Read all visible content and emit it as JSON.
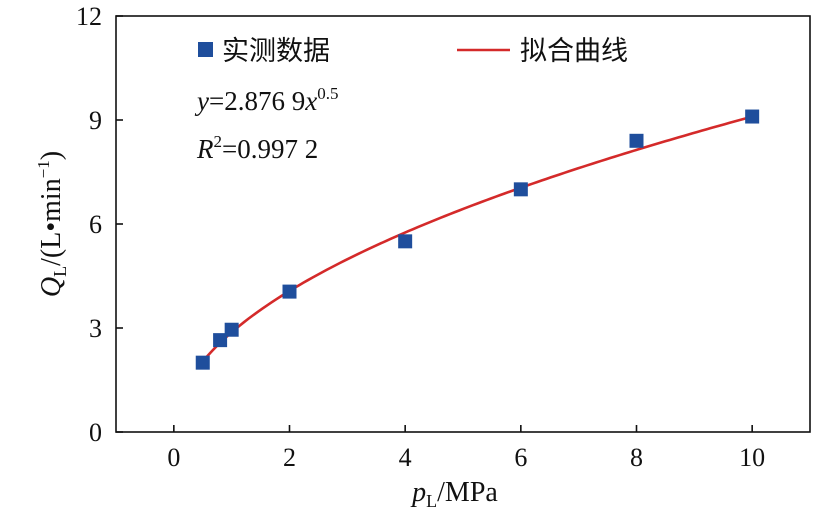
{
  "chart_data": {
    "type": "scatter",
    "xlabel": {
      "main": "p",
      "sub": "L",
      "unit": "/MPa"
    },
    "ylabel": {
      "main": "Q",
      "sub": "L",
      "unit_before": "/(L•min",
      "unit_sup": "−1",
      "unit_after": ")"
    },
    "xlim": [
      -1,
      11
    ],
    "ylim": [
      0,
      12
    ],
    "xticks": [
      0,
      2,
      4,
      6,
      8,
      10
    ],
    "yticks": [
      0,
      3,
      6,
      9,
      12
    ],
    "xtick_labels": [
      "0",
      "2",
      "4",
      "6",
      "8",
      "10"
    ],
    "ytick_labels": [
      "0",
      "3",
      "6",
      "9",
      "12"
    ],
    "grid": false,
    "legend_position": "top",
    "series": [
      {
        "name": "实测数据",
        "marker": "square",
        "color": "#1f4e9c",
        "x": [
          0.5,
          0.8,
          1.0,
          2.0,
          4.0,
          6.0,
          8.0,
          10.0
        ],
        "y": [
          2.0,
          2.65,
          2.95,
          4.05,
          5.5,
          7.0,
          8.4,
          9.1
        ]
      },
      {
        "name": "拟合曲线",
        "type": "line",
        "color": "#d42a2a",
        "equation": {
          "a": 2.8769,
          "b": 0.5
        },
        "x_range": [
          0.5,
          10.0
        ]
      }
    ],
    "annotations": {
      "equation": {
        "var": "y",
        "rhs": "=2.876 9",
        "x": "x",
        "exp": "0.5"
      },
      "r2": {
        "var": "R",
        "exp": "2",
        "rhs": "=0.997 2"
      }
    }
  }
}
